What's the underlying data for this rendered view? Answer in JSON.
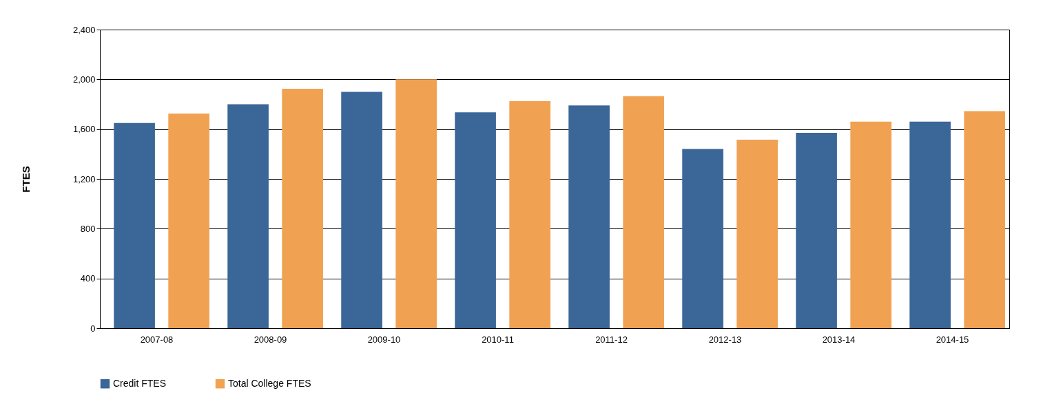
{
  "chart_data": {
    "type": "bar",
    "ylabel": "FTES",
    "categories": [
      "2007-08",
      "2008-09",
      "2009-10",
      "2010-11",
      "2011-12",
      "2012-13",
      "2013-14",
      "2014-15"
    ],
    "series": [
      {
        "name": "Credit FTES",
        "color": "#3a6698",
        "values": [
          1650,
          1800,
          1900,
          1735,
          1790,
          1440,
          1570,
          1660
        ]
      },
      {
        "name": "Total College FTES",
        "color": "#f0a252",
        "values": [
          1725,
          1925,
          2000,
          1825,
          1865,
          1515,
          1660,
          1745
        ]
      }
    ],
    "ylim": [
      0,
      2400
    ],
    "yticks": [
      {
        "value": 0,
        "label": "0"
      },
      {
        "value": 400,
        "label": "400"
      },
      {
        "value": 800,
        "label": "800"
      },
      {
        "value": 1200,
        "label": "1,200"
      },
      {
        "value": 1600,
        "label": "1,600"
      },
      {
        "value": 2000,
        "label": "2,000"
      },
      {
        "value": 2400,
        "label": "2,400"
      }
    ],
    "grid": "y",
    "legend": "bottom"
  }
}
